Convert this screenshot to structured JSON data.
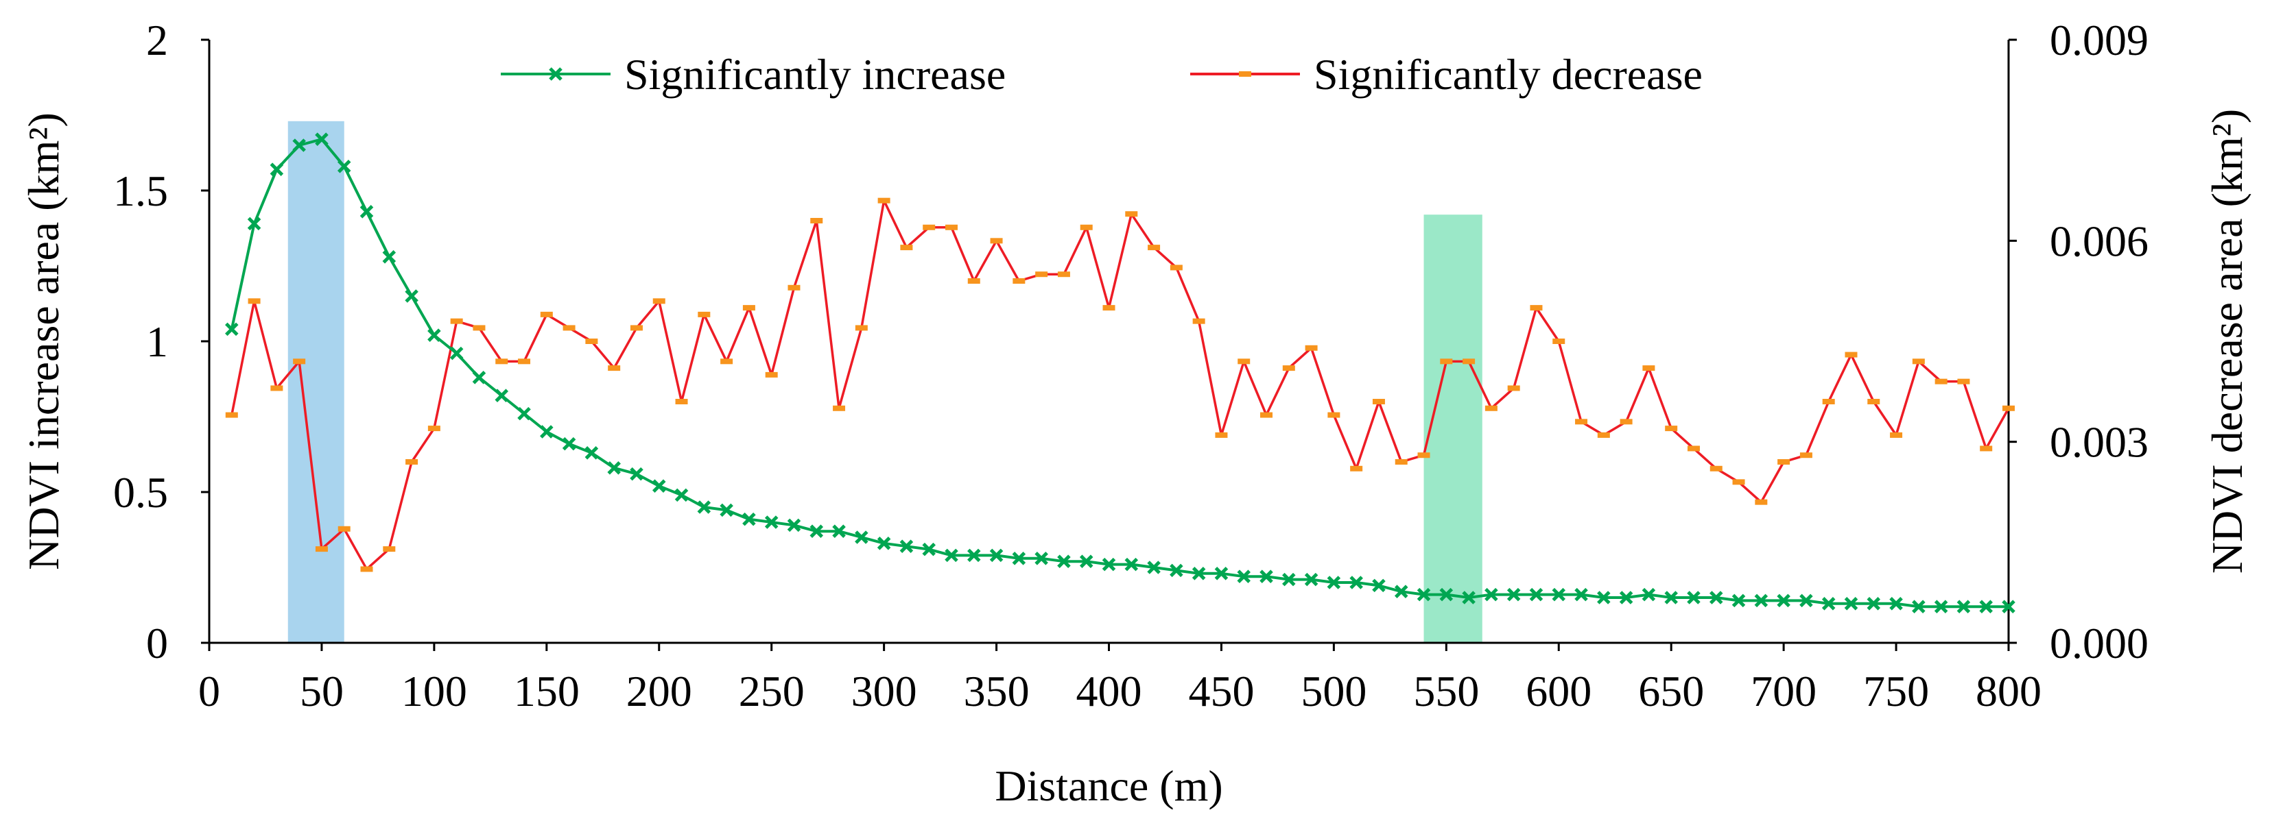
{
  "chart_data": {
    "type": "line",
    "xlabel": "Distance (m)",
    "ylabel_left": "NDVI increase area (km²)",
    "ylabel_right": "NDVI decrease area (km²)",
    "xlim": [
      0,
      800
    ],
    "ylim_left": [
      0,
      2
    ],
    "ylim_right": [
      0,
      0.009
    ],
    "x_ticks": [
      0,
      50,
      100,
      150,
      200,
      250,
      300,
      350,
      400,
      450,
      500,
      550,
      600,
      650,
      700,
      750,
      800
    ],
    "y_ticks_left": [
      "0",
      "0.5",
      "1",
      "1.5",
      "2"
    ],
    "y_ticks_right": [
      "0.000",
      "0.003",
      "0.006",
      "0.009"
    ],
    "grid": false,
    "legend_position": "top-center",
    "highlight_bands": [
      {
        "x_start": 35,
        "x_end": 60,
        "y_top": 1.73,
        "color": "#a9d4ee"
      },
      {
        "x_start": 540,
        "x_end": 566,
        "y_top": 1.42,
        "color": "#9be8c8"
      }
    ],
    "x": [
      10,
      20,
      30,
      40,
      50,
      60,
      70,
      80,
      90,
      100,
      110,
      120,
      130,
      140,
      150,
      160,
      170,
      180,
      190,
      200,
      210,
      220,
      230,
      240,
      250,
      260,
      270,
      280,
      290,
      300,
      310,
      320,
      330,
      340,
      350,
      360,
      370,
      380,
      390,
      400,
      410,
      420,
      430,
      440,
      450,
      460,
      470,
      480,
      490,
      500,
      510,
      520,
      530,
      540,
      550,
      560,
      570,
      580,
      590,
      600,
      610,
      620,
      630,
      640,
      650,
      660,
      670,
      680,
      690,
      700,
      710,
      720,
      730,
      740,
      750,
      760,
      770,
      780,
      790,
      800
    ],
    "series": [
      {
        "name": "Significantly increase",
        "axis": "left",
        "color": "#00a651",
        "marker": "x",
        "values": [
          1.04,
          1.39,
          1.57,
          1.65,
          1.67,
          1.58,
          1.43,
          1.28,
          1.15,
          1.02,
          0.96,
          0.88,
          0.82,
          0.76,
          0.7,
          0.66,
          0.63,
          0.58,
          0.56,
          0.52,
          0.49,
          0.45,
          0.44,
          0.41,
          0.4,
          0.39,
          0.37,
          0.37,
          0.35,
          0.33,
          0.32,
          0.31,
          0.29,
          0.29,
          0.29,
          0.28,
          0.28,
          0.27,
          0.27,
          0.26,
          0.26,
          0.25,
          0.24,
          0.23,
          0.23,
          0.22,
          0.22,
          0.21,
          0.21,
          0.2,
          0.2,
          0.19,
          0.17,
          0.16,
          0.16,
          0.15,
          0.16,
          0.16,
          0.16,
          0.16,
          0.16,
          0.15,
          0.15,
          0.16,
          0.15,
          0.15,
          0.15,
          0.14,
          0.14,
          0.14,
          0.14,
          0.13,
          0.13,
          0.13,
          0.13,
          0.12,
          0.12,
          0.12,
          0.12,
          0.12
        ]
      },
      {
        "name": "Significantly decrease",
        "axis": "right",
        "color": "#ee1c25",
        "marker": "dash",
        "marker_color": "#f7941d",
        "values": [
          0.0034,
          0.0051,
          0.0038,
          0.0042,
          0.0014,
          0.0017,
          0.0011,
          0.0014,
          0.0027,
          0.0032,
          0.0048,
          0.0047,
          0.0042,
          0.0042,
          0.0049,
          0.0047,
          0.0045,
          0.0041,
          0.0047,
          0.0051,
          0.0036,
          0.0049,
          0.0042,
          0.005,
          0.004,
          0.0053,
          0.0063,
          0.0035,
          0.0047,
          0.0066,
          0.0059,
          0.0062,
          0.0062,
          0.0054,
          0.006,
          0.0054,
          0.0055,
          0.0055,
          0.0062,
          0.005,
          0.0064,
          0.0059,
          0.0056,
          0.0048,
          0.0031,
          0.0042,
          0.0034,
          0.0041,
          0.0044,
          0.0034,
          0.0026,
          0.0036,
          0.0027,
          0.0028,
          0.0042,
          0.0042,
          0.0035,
          0.0038,
          0.005,
          0.0045,
          0.0033,
          0.0031,
          0.0033,
          0.0041,
          0.0032,
          0.0029,
          0.0026,
          0.0024,
          0.0021,
          0.0027,
          0.0028,
          0.0036,
          0.0043,
          0.0036,
          0.0031,
          0.0042,
          0.0039,
          0.0039,
          0.0029,
          0.0035
        ]
      }
    ]
  }
}
